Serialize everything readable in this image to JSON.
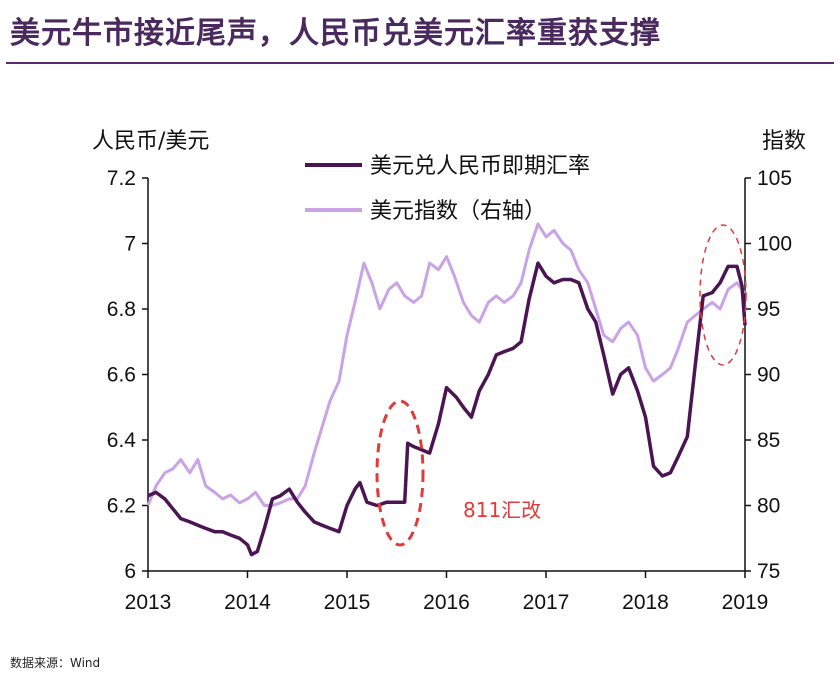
{
  "title": "美元牛市接近尾声，人民币兑美元汇率重获支撑",
  "source": "数据来源：Wind",
  "colors": {
    "series_dark": "#4b1452",
    "series_light": "#c9a3e6",
    "annotation": "#e03a3a",
    "title": "#4a2a5e"
  },
  "chart_data": {
    "type": "line",
    "left_axis_label": "人民币/美元",
    "right_axis_label": "指数",
    "x_ticks": [
      "2013",
      "2014",
      "2015",
      "2016",
      "2017",
      "2018",
      "2019"
    ],
    "y_left_ticks": [
      "6",
      "6.2",
      "6.4",
      "6.6",
      "6.8",
      "7",
      "7.2"
    ],
    "y_right_ticks": [
      "75",
      "80",
      "85",
      "90",
      "95",
      "100",
      "105"
    ],
    "ylim_left": [
      6.0,
      7.2
    ],
    "ylim_right": [
      75,
      105
    ],
    "xlim": [
      2013,
      2019
    ],
    "legend": [
      "美元兑人民币即期汇率",
      "美元指数（右轴）"
    ],
    "annotation_text": "811汇改",
    "series": [
      {
        "name": "美元兑人民币即期汇率",
        "axis": "left",
        "points": [
          [
            2013.0,
            6.23
          ],
          [
            2013.08,
            6.24
          ],
          [
            2013.17,
            6.22
          ],
          [
            2013.25,
            6.19
          ],
          [
            2013.33,
            6.16
          ],
          [
            2013.42,
            6.15
          ],
          [
            2013.5,
            6.14
          ],
          [
            2013.58,
            6.13
          ],
          [
            2013.67,
            6.12
          ],
          [
            2013.75,
            6.12
          ],
          [
            2013.83,
            6.11
          ],
          [
            2013.92,
            6.1
          ],
          [
            2014.0,
            6.08
          ],
          [
            2014.04,
            6.05
          ],
          [
            2014.1,
            6.06
          ],
          [
            2014.17,
            6.13
          ],
          [
            2014.25,
            6.22
          ],
          [
            2014.33,
            6.23
          ],
          [
            2014.42,
            6.25
          ],
          [
            2014.5,
            6.21
          ],
          [
            2014.58,
            6.18
          ],
          [
            2014.67,
            6.15
          ],
          [
            2014.75,
            6.14
          ],
          [
            2014.83,
            6.13
          ],
          [
            2014.92,
            6.12
          ],
          [
            2015.0,
            6.2
          ],
          [
            2015.08,
            6.25
          ],
          [
            2015.13,
            6.27
          ],
          [
            2015.2,
            6.21
          ],
          [
            2015.3,
            6.2
          ],
          [
            2015.4,
            6.21
          ],
          [
            2015.5,
            6.21
          ],
          [
            2015.58,
            6.21
          ],
          [
            2015.61,
            6.39
          ],
          [
            2015.67,
            6.38
          ],
          [
            2015.75,
            6.37
          ],
          [
            2015.83,
            6.36
          ],
          [
            2015.92,
            6.45
          ],
          [
            2016.0,
            6.56
          ],
          [
            2016.1,
            6.53
          ],
          [
            2016.17,
            6.5
          ],
          [
            2016.25,
            6.47
          ],
          [
            2016.33,
            6.55
          ],
          [
            2016.42,
            6.6
          ],
          [
            2016.5,
            6.66
          ],
          [
            2016.58,
            6.67
          ],
          [
            2016.67,
            6.68
          ],
          [
            2016.75,
            6.7
          ],
          [
            2016.83,
            6.83
          ],
          [
            2016.92,
            6.94
          ],
          [
            2017.0,
            6.9
          ],
          [
            2017.08,
            6.88
          ],
          [
            2017.17,
            6.89
          ],
          [
            2017.25,
            6.89
          ],
          [
            2017.33,
            6.88
          ],
          [
            2017.42,
            6.8
          ],
          [
            2017.5,
            6.76
          ],
          [
            2017.58,
            6.66
          ],
          [
            2017.67,
            6.54
          ],
          [
            2017.75,
            6.6
          ],
          [
            2017.83,
            6.62
          ],
          [
            2017.92,
            6.55
          ],
          [
            2018.0,
            6.47
          ],
          [
            2018.08,
            6.32
          ],
          [
            2018.17,
            6.29
          ],
          [
            2018.25,
            6.3
          ],
          [
            2018.33,
            6.35
          ],
          [
            2018.42,
            6.41
          ],
          [
            2018.5,
            6.63
          ],
          [
            2018.58,
            6.84
          ],
          [
            2018.67,
            6.85
          ],
          [
            2018.75,
            6.88
          ],
          [
            2018.83,
            6.93
          ],
          [
            2018.92,
            6.93
          ],
          [
            2018.97,
            6.87
          ],
          [
            2019.0,
            6.75
          ]
        ]
      },
      {
        "name": "美元指数（右轴）",
        "axis": "right",
        "points": [
          [
            2013.0,
            80.0
          ],
          [
            2013.08,
            81.5
          ],
          [
            2013.17,
            82.5
          ],
          [
            2013.25,
            82.8
          ],
          [
            2013.33,
            83.5
          ],
          [
            2013.42,
            82.5
          ],
          [
            2013.5,
            83.5
          ],
          [
            2013.58,
            81.5
          ],
          [
            2013.67,
            81.0
          ],
          [
            2013.75,
            80.5
          ],
          [
            2013.83,
            80.8
          ],
          [
            2013.92,
            80.2
          ],
          [
            2014.0,
            80.5
          ],
          [
            2014.08,
            81.0
          ],
          [
            2014.17,
            80.0
          ],
          [
            2014.25,
            80.0
          ],
          [
            2014.33,
            80.2
          ],
          [
            2014.42,
            80.5
          ],
          [
            2014.5,
            80.5
          ],
          [
            2014.58,
            81.5
          ],
          [
            2014.67,
            84.0
          ],
          [
            2014.75,
            86.0
          ],
          [
            2014.83,
            88.0
          ],
          [
            2014.92,
            89.5
          ],
          [
            2015.0,
            93.0
          ],
          [
            2015.08,
            95.5
          ],
          [
            2015.17,
            98.5
          ],
          [
            2015.25,
            97.0
          ],
          [
            2015.33,
            95.0
          ],
          [
            2015.42,
            96.5
          ],
          [
            2015.5,
            97.0
          ],
          [
            2015.58,
            96.0
          ],
          [
            2015.67,
            95.5
          ],
          [
            2015.75,
            96.0
          ],
          [
            2015.83,
            98.5
          ],
          [
            2015.92,
            98.0
          ],
          [
            2016.0,
            99.0
          ],
          [
            2016.08,
            97.5
          ],
          [
            2016.17,
            95.5
          ],
          [
            2016.25,
            94.5
          ],
          [
            2016.33,
            94.0
          ],
          [
            2016.42,
            95.5
          ],
          [
            2016.5,
            96.0
          ],
          [
            2016.58,
            95.5
          ],
          [
            2016.67,
            96.0
          ],
          [
            2016.75,
            97.0
          ],
          [
            2016.83,
            99.5
          ],
          [
            2016.92,
            101.5
          ],
          [
            2017.0,
            100.5
          ],
          [
            2017.08,
            101.0
          ],
          [
            2017.17,
            100.0
          ],
          [
            2017.25,
            99.5
          ],
          [
            2017.33,
            98.0
          ],
          [
            2017.42,
            97.0
          ],
          [
            2017.5,
            95.0
          ],
          [
            2017.58,
            93.0
          ],
          [
            2017.67,
            92.5
          ],
          [
            2017.75,
            93.5
          ],
          [
            2017.83,
            94.0
          ],
          [
            2017.92,
            93.0
          ],
          [
            2018.0,
            90.5
          ],
          [
            2018.08,
            89.5
          ],
          [
            2018.17,
            90.0
          ],
          [
            2018.25,
            90.5
          ],
          [
            2018.33,
            92.0
          ],
          [
            2018.42,
            94.0
          ],
          [
            2018.5,
            94.5
          ],
          [
            2018.58,
            95.0
          ],
          [
            2018.67,
            95.5
          ],
          [
            2018.75,
            95.0
          ],
          [
            2018.83,
            96.5
          ],
          [
            2018.92,
            97.0
          ],
          [
            2019.0,
            96.2
          ]
        ]
      }
    ]
  }
}
